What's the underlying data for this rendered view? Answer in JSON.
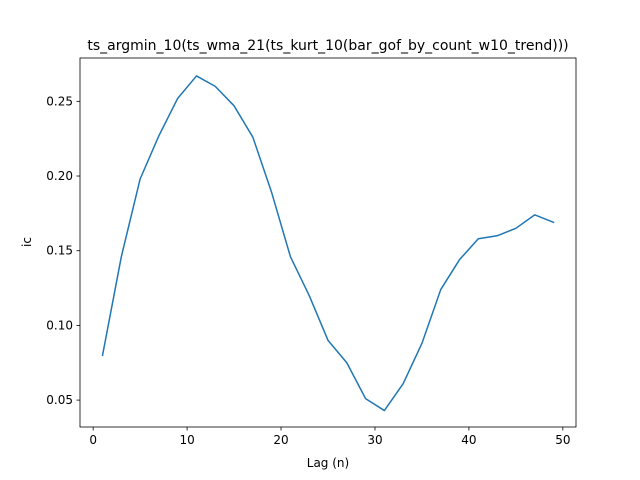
{
  "chart_data": {
    "type": "line",
    "title": "ts_argmin_10(ts_wma_21(ts_kurt_10(bar_gof_by_count_w10_trend)))",
    "xlabel": "Lag (n)",
    "ylabel": "ic",
    "xlim": [
      -1.4,
      51.4
    ],
    "ylim": [
      0.032,
      0.279
    ],
    "xticks": [
      0,
      10,
      20,
      30,
      40,
      50
    ],
    "yticks": [
      0.05,
      0.1,
      0.15,
      0.2,
      0.25
    ],
    "ytick_labels": [
      "0.05",
      "0.10",
      "0.15",
      "0.20",
      "0.25"
    ],
    "grid": false,
    "series": [
      {
        "color": "#1f77b4",
        "x": [
          1,
          3,
          5,
          7,
          9,
          11,
          13,
          15,
          17,
          19,
          21,
          23,
          25,
          27,
          29,
          31,
          33,
          35,
          37,
          39,
          41,
          43,
          45,
          47,
          49
        ],
        "y": [
          0.08,
          0.146,
          0.198,
          0.227,
          0.252,
          0.267,
          0.26,
          0.247,
          0.226,
          0.189,
          0.146,
          0.12,
          0.09,
          0.075,
          0.051,
          0.043,
          0.061,
          0.088,
          0.124,
          0.144,
          0.158,
          0.16,
          0.165,
          0.174,
          0.169
        ]
      }
    ]
  }
}
